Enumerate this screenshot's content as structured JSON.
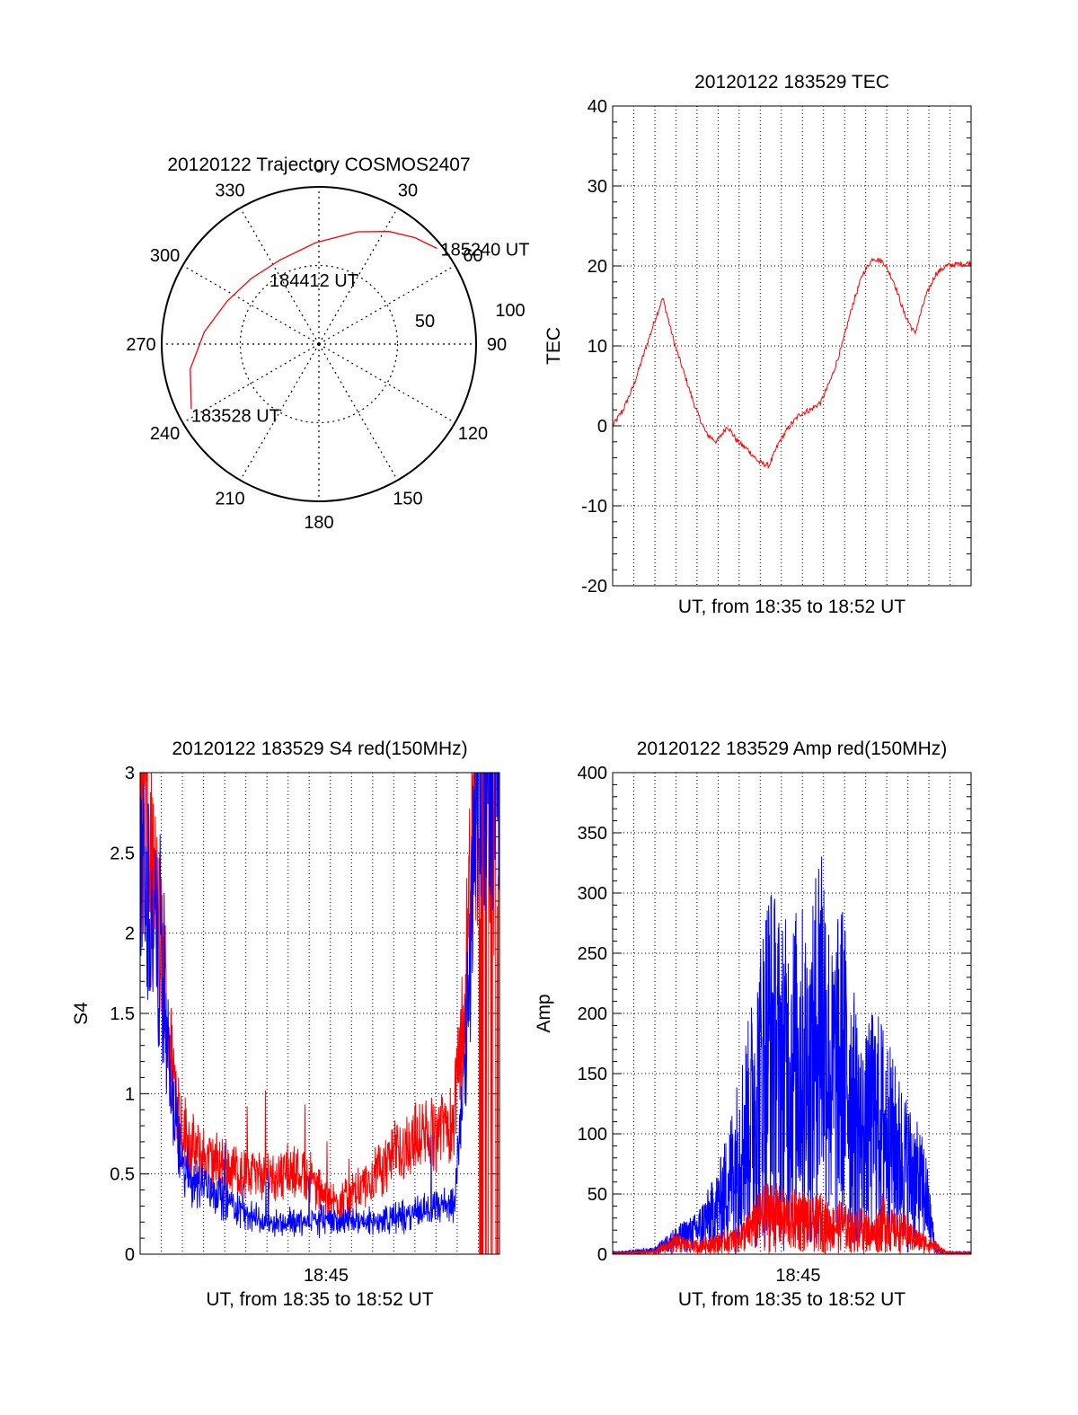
{
  "figure": {
    "colors": {
      "red": "#ff0000",
      "blue": "#0000ff",
      "black": "#000000"
    }
  },
  "chart_data": [
    {
      "id": "trajectory",
      "type": "polar",
      "title": "20120122 Trajectory COSMOS2407",
      "azimuth_labels": [
        "0",
        "30",
        "60",
        "90",
        "120",
        "150",
        "180",
        "210",
        "240",
        "270",
        "300",
        "330"
      ],
      "range_labels": [
        "50",
        "100"
      ],
      "track": [
        {
          "az": 243,
          "el": 8
        },
        {
          "az": 259,
          "el": 15
        },
        {
          "az": 276,
          "el": 24
        },
        {
          "az": 295,
          "el": 32
        },
        {
          "az": 314,
          "el": 36
        },
        {
          "az": 335,
          "el": 37
        },
        {
          "az": 358,
          "el": 32
        },
        {
          "az": 19,
          "el": 22
        },
        {
          "az": 32,
          "el": 14
        },
        {
          "az": 42,
          "el": 8
        },
        {
          "az": 51,
          "el": 3
        }
      ],
      "annotations": [
        "185240 UT",
        "184412 UT",
        "183528 UT"
      ]
    },
    {
      "id": "tec",
      "type": "line",
      "title": "20120122 183529 TEC",
      "xlabel": "UT, from 18:35 to 18:52 UT",
      "ylabel": "TEC",
      "xlim": [
        0,
        17.2
      ],
      "ylim": [
        -20,
        40
      ],
      "yticks": [
        "-20",
        "-10",
        "0",
        "10",
        "20",
        "30",
        "40"
      ],
      "series": [
        {
          "color": "#ff0000",
          "x": [
            0,
            0.5,
            1,
            1.5,
            2,
            2.4,
            3,
            3.5,
            4,
            4.5,
            5,
            5.5,
            6,
            6.5,
            7,
            7.5,
            8,
            8.5,
            9,
            9.5,
            10,
            10.5,
            11,
            11.5,
            12,
            12.5,
            13,
            13.5,
            14,
            14.5,
            15,
            15.5,
            16,
            16.5,
            17,
            17.2
          ],
          "y": [
            0,
            2,
            5,
            9,
            13,
            16,
            10,
            6,
            2,
            -1,
            -2,
            0,
            -2,
            -3,
            -4.5,
            -5,
            -2,
            0,
            1.5,
            2,
            3,
            6,
            10,
            15,
            19,
            21,
            20.5,
            18,
            14,
            11.5,
            16,
            19,
            20,
            20.2,
            20.3,
            20.4
          ]
        }
      ]
    },
    {
      "id": "s4",
      "type": "line",
      "title": "20120122 183529 S4 red(150MHz)",
      "xlabel": "UT, from 18:35 to 18:52 UT",
      "ylabel": "S4",
      "xlim": [
        0,
        17.2
      ],
      "ylim": [
        0,
        3
      ],
      "xticks": [
        {
          "value": 8.9,
          "label": "18:45"
        }
      ],
      "yticks": [
        "0",
        "0.5",
        "1",
        "1.5",
        "2",
        "2.5",
        "3"
      ],
      "series": [
        {
          "name": "",
          "color": "#ff0000",
          "x": [
            0,
            0.5,
            1,
            1.5,
            2,
            2.5,
            3,
            4,
            5,
            6,
            7,
            8,
            9,
            10,
            11,
            12,
            13,
            14,
            15,
            15.5,
            16,
            16.5,
            17,
            17.2
          ],
          "y": [
            3.0,
            2.4,
            1.9,
            1.2,
            0.8,
            0.65,
            0.6,
            0.55,
            0.5,
            0.48,
            0.52,
            0.5,
            0.32,
            0.35,
            0.45,
            0.6,
            0.7,
            0.75,
            0.85,
            1.5,
            2.8,
            3.0,
            2.5,
            2.6
          ]
        },
        {
          "name": "",
          "color": "#0000ff",
          "x": [
            0,
            0.5,
            1,
            1.5,
            2,
            2.5,
            3,
            4,
            5,
            6,
            7,
            8,
            9,
            10,
            11,
            12,
            13,
            14,
            15,
            15.5,
            16,
            16.5,
            17,
            17.2
          ],
          "y": [
            2.6,
            2.1,
            1.8,
            1.0,
            0.55,
            0.45,
            0.45,
            0.35,
            0.25,
            0.2,
            0.2,
            0.2,
            0.22,
            0.2,
            0.2,
            0.22,
            0.25,
            0.3,
            0.3,
            1.0,
            2.5,
            3.0,
            3.0,
            3.0
          ]
        }
      ]
    },
    {
      "id": "amp",
      "type": "line",
      "title": "20120122 183529 Amp red(150MHz)",
      "xlabel": "UT, from 18:35 to 18:52 UT",
      "ylabel": "Amp",
      "xlim": [
        0,
        17.2
      ],
      "ylim": [
        0,
        400
      ],
      "xticks": [
        {
          "value": 8.9,
          "label": "18:45"
        }
      ],
      "yticks": [
        "0",
        "50",
        "100",
        "150",
        "200",
        "250",
        "300",
        "350",
        "400"
      ],
      "series": [
        {
          "name": "",
          "color": "#0000ff",
          "x": [
            0,
            1,
            2,
            3,
            4,
            5,
            5.5,
            6,
            6.5,
            7,
            7.5,
            8,
            8.5,
            9,
            9.5,
            10,
            10.5,
            11,
            11.5,
            12,
            12.5,
            13,
            13.5,
            14,
            14.5,
            15,
            15.5,
            16,
            17.2
          ],
          "y": [
            2,
            3,
            5,
            20,
            30,
            60,
            90,
            130,
            170,
            220,
            280,
            250,
            240,
            260,
            230,
            335,
            220,
            260,
            200,
            150,
            180,
            170,
            140,
            120,
            100,
            80,
            5,
            2,
            2
          ]
        },
        {
          "name": "",
          "color": "#ff0000",
          "x": [
            0,
            1,
            2,
            3,
            4,
            5,
            6,
            6.5,
            7,
            7.5,
            8,
            8.5,
            9,
            9.5,
            10,
            10.5,
            11,
            11.5,
            12,
            12.5,
            13,
            13.5,
            14,
            14.5,
            15,
            15.5,
            16,
            17.2
          ],
          "y": [
            1,
            2,
            3,
            15,
            10,
            15,
            20,
            30,
            45,
            55,
            50,
            45,
            50,
            40,
            45,
            35,
            40,
            30,
            35,
            25,
            45,
            30,
            30,
            20,
            15,
            10,
            2,
            1
          ]
        }
      ]
    }
  ]
}
